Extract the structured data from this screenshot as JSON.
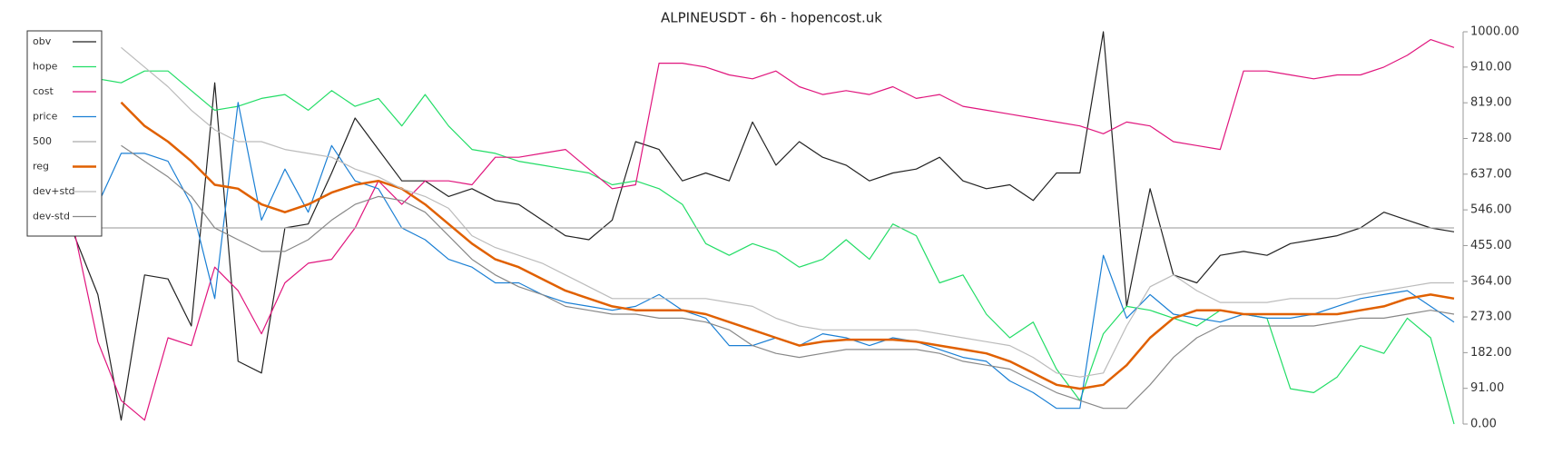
{
  "chart_data": {
    "type": "line",
    "title": "ALPINEUSDT - 6h - hopencost.uk",
    "ylim": [
      0,
      1000
    ],
    "yticks": [
      {
        "value": 0,
        "label": "0.00"
      },
      {
        "value": 91,
        "label": "91.00"
      },
      {
        "value": 182,
        "label": "182.00"
      },
      {
        "value": 273,
        "label": "273.00"
      },
      {
        "value": 364,
        "label": "364.00"
      },
      {
        "value": 455,
        "label": "455.00"
      },
      {
        "value": 546,
        "label": "546.00"
      },
      {
        "value": 637,
        "label": "637.00"
      },
      {
        "value": 728,
        "label": "728.00"
      },
      {
        "value": 819,
        "label": "819.00"
      },
      {
        "value": 910,
        "label": "910.00"
      },
      {
        "value": 1000,
        "label": "1000.00"
      }
    ],
    "legend": "upper left",
    "series": [
      {
        "name": "obv",
        "color": "#222222",
        "values": [
          480,
          330,
          10,
          380,
          370,
          250,
          870,
          160,
          130,
          500,
          510,
          640,
          780,
          700,
          620,
          620,
          580,
          600,
          570,
          560,
          520,
          480,
          470,
          520,
          720,
          700,
          620,
          640,
          620,
          770,
          660,
          720,
          680,
          660,
          620,
          640,
          650,
          680,
          620,
          600,
          610,
          570,
          640,
          640,
          1000,
          300,
          600,
          380,
          360,
          430,
          440,
          430,
          460,
          470,
          480,
          500,
          540,
          520,
          500,
          490
        ]
      },
      {
        "name": "hope",
        "color": "#22dd66",
        "values": [
          920,
          880,
          870,
          900,
          900,
          850,
          800,
          810,
          830,
          840,
          800,
          850,
          810,
          830,
          760,
          840,
          760,
          700,
          690,
          670,
          660,
          650,
          640,
          610,
          620,
          600,
          560,
          460,
          430,
          460,
          440,
          400,
          420,
          470,
          420,
          510,
          480,
          360,
          380,
          280,
          220,
          260,
          140,
          60,
          230,
          300,
          290,
          270,
          250,
          290,
          280,
          270,
          90,
          80,
          120,
          200,
          180,
          270,
          220,
          0
        ]
      },
      {
        "name": "cost",
        "color": "#e0157d",
        "values": [
          490,
          210,
          60,
          10,
          220,
          200,
          400,
          340,
          230,
          360,
          410,
          420,
          500,
          620,
          560,
          620,
          620,
          610,
          680,
          680,
          690,
          700,
          650,
          600,
          610,
          920,
          920,
          910,
          890,
          880,
          900,
          860,
          840,
          850,
          840,
          860,
          830,
          840,
          810,
          800,
          790,
          780,
          770,
          760,
          740,
          770,
          760,
          720,
          710,
          700,
          900,
          900,
          890,
          880,
          890,
          890,
          910,
          940,
          980,
          960
        ]
      },
      {
        "name": "price",
        "color": "#1a7fd4",
        "values": [
          800,
          560,
          690,
          690,
          670,
          560,
          320,
          820,
          520,
          650,
          540,
          710,
          620,
          600,
          500,
          470,
          420,
          400,
          360,
          360,
          330,
          310,
          300,
          290,
          300,
          330,
          290,
          270,
          200,
          200,
          220,
          200,
          230,
          220,
          200,
          220,
          210,
          190,
          170,
          160,
          110,
          80,
          40,
          40,
          430,
          270,
          330,
          280,
          270,
          260,
          280,
          270,
          270,
          280,
          300,
          320,
          330,
          340,
          300,
          260
        ]
      },
      {
        "name": "500",
        "color": "#aaaaaa",
        "values": [
          500,
          500,
          500,
          500,
          500,
          500,
          500,
          500,
          500,
          500,
          500,
          500,
          500,
          500,
          500,
          500,
          500,
          500,
          500,
          500,
          500,
          500,
          500,
          500,
          500,
          500,
          500,
          500,
          500,
          500,
          500,
          500,
          500,
          500,
          500,
          500,
          500,
          500,
          500,
          500,
          500,
          500,
          500,
          500,
          500,
          500,
          500,
          500,
          500,
          500,
          500,
          500,
          500,
          500,
          500,
          500,
          500,
          500,
          500,
          500
        ]
      },
      {
        "name": "reg",
        "color": "#e06000",
        "values": [
          null,
          null,
          820,
          760,
          720,
          670,
          610,
          600,
          560,
          540,
          560,
          590,
          610,
          620,
          600,
          560,
          510,
          460,
          420,
          400,
          370,
          340,
          320,
          300,
          290,
          290,
          290,
          280,
          260,
          240,
          220,
          200,
          210,
          215,
          215,
          215,
          210,
          200,
          190,
          180,
          160,
          130,
          100,
          90,
          100,
          150,
          220,
          270,
          290,
          290,
          280,
          280,
          280,
          280,
          280,
          290,
          300,
          320,
          330,
          320
        ]
      },
      {
        "name": "dev+std",
        "color": "#bbbbbb",
        "values": [
          null,
          null,
          960,
          910,
          860,
          800,
          750,
          720,
          720,
          700,
          690,
          680,
          650,
          630,
          600,
          580,
          550,
          480,
          450,
          430,
          410,
          380,
          350,
          320,
          320,
          320,
          320,
          320,
          310,
          300,
          270,
          250,
          240,
          240,
          240,
          240,
          240,
          230,
          220,
          210,
          200,
          170,
          130,
          120,
          130,
          250,
          350,
          380,
          340,
          310,
          310,
          310,
          320,
          320,
          320,
          330,
          340,
          350,
          360,
          360
        ]
      },
      {
        "name": "dev-std",
        "color": "#888888",
        "values": [
          null,
          null,
          710,
          670,
          630,
          580,
          500,
          470,
          440,
          440,
          470,
          520,
          560,
          580,
          570,
          540,
          480,
          420,
          380,
          350,
          330,
          300,
          290,
          280,
          280,
          270,
          270,
          260,
          240,
          200,
          180,
          170,
          180,
          190,
          190,
          190,
          190,
          180,
          160,
          150,
          140,
          110,
          80,
          60,
          40,
          40,
          100,
          170,
          220,
          250,
          250,
          250,
          250,
          250,
          260,
          270,
          270,
          280,
          290,
          280
        ]
      }
    ]
  }
}
